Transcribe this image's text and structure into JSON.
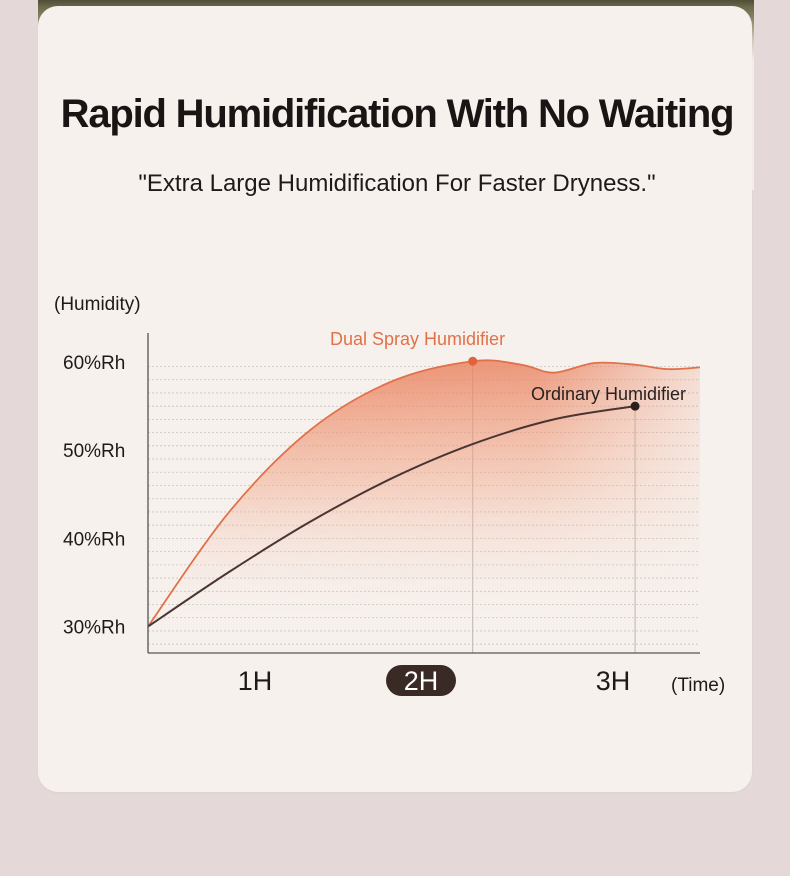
{
  "page": {
    "title": "Rapid Humidification With No Waiting",
    "subtitle": "\"Extra Large Humidification For Faster Dryness.\""
  },
  "chart_data": {
    "type": "line",
    "ylabel": "(Humidity)",
    "xlabel": "(Time)",
    "y_ticks": [
      {
        "value": 30,
        "label": "30%Rh"
      },
      {
        "value": 40,
        "label": "40%Rh"
      },
      {
        "value": 50,
        "label": "50%Rh"
      },
      {
        "value": 60,
        "label": "60%Rh"
      }
    ],
    "x_ticks": [
      {
        "value": 1,
        "label": "1H",
        "highlight": false
      },
      {
        "value": 2,
        "label": "2H",
        "highlight": true
      },
      {
        "value": 3,
        "label": "3H",
        "highlight": false
      }
    ],
    "xlim": [
      0,
      3.4
    ],
    "ylim": [
      27.0,
      63.3
    ],
    "grid": true,
    "series": [
      {
        "name": "Dual Spray Humidifier",
        "color": "#e07149",
        "fill": true,
        "points": [
          [
            0,
            30
          ],
          [
            0.5,
            43
          ],
          [
            1,
            52.3
          ],
          [
            1.5,
            57.8
          ],
          [
            2,
            60.1
          ],
          [
            2.3,
            59.7
          ],
          [
            2.5,
            58.8
          ],
          [
            2.75,
            59.9
          ],
          [
            3,
            59.7
          ],
          [
            3.2,
            59.2
          ],
          [
            3.4,
            59.4
          ]
        ],
        "marker": [
          2,
          60.1
        ]
      },
      {
        "name": "Ordinary Humidifier",
        "color": "#4a3532",
        "fill": false,
        "points": [
          [
            0,
            30
          ],
          [
            0.5,
            36.2
          ],
          [
            1,
            41.9
          ],
          [
            1.5,
            46.8
          ],
          [
            2,
            50.7
          ],
          [
            2.5,
            53.5
          ],
          [
            3,
            55
          ]
        ],
        "marker": [
          3,
          55
        ]
      }
    ],
    "colors": {
      "axis": "#555555",
      "grid": "#c9c1bf",
      "highlight_bg": "#3a2a26",
      "highlight_fg": "#ffffff"
    }
  }
}
